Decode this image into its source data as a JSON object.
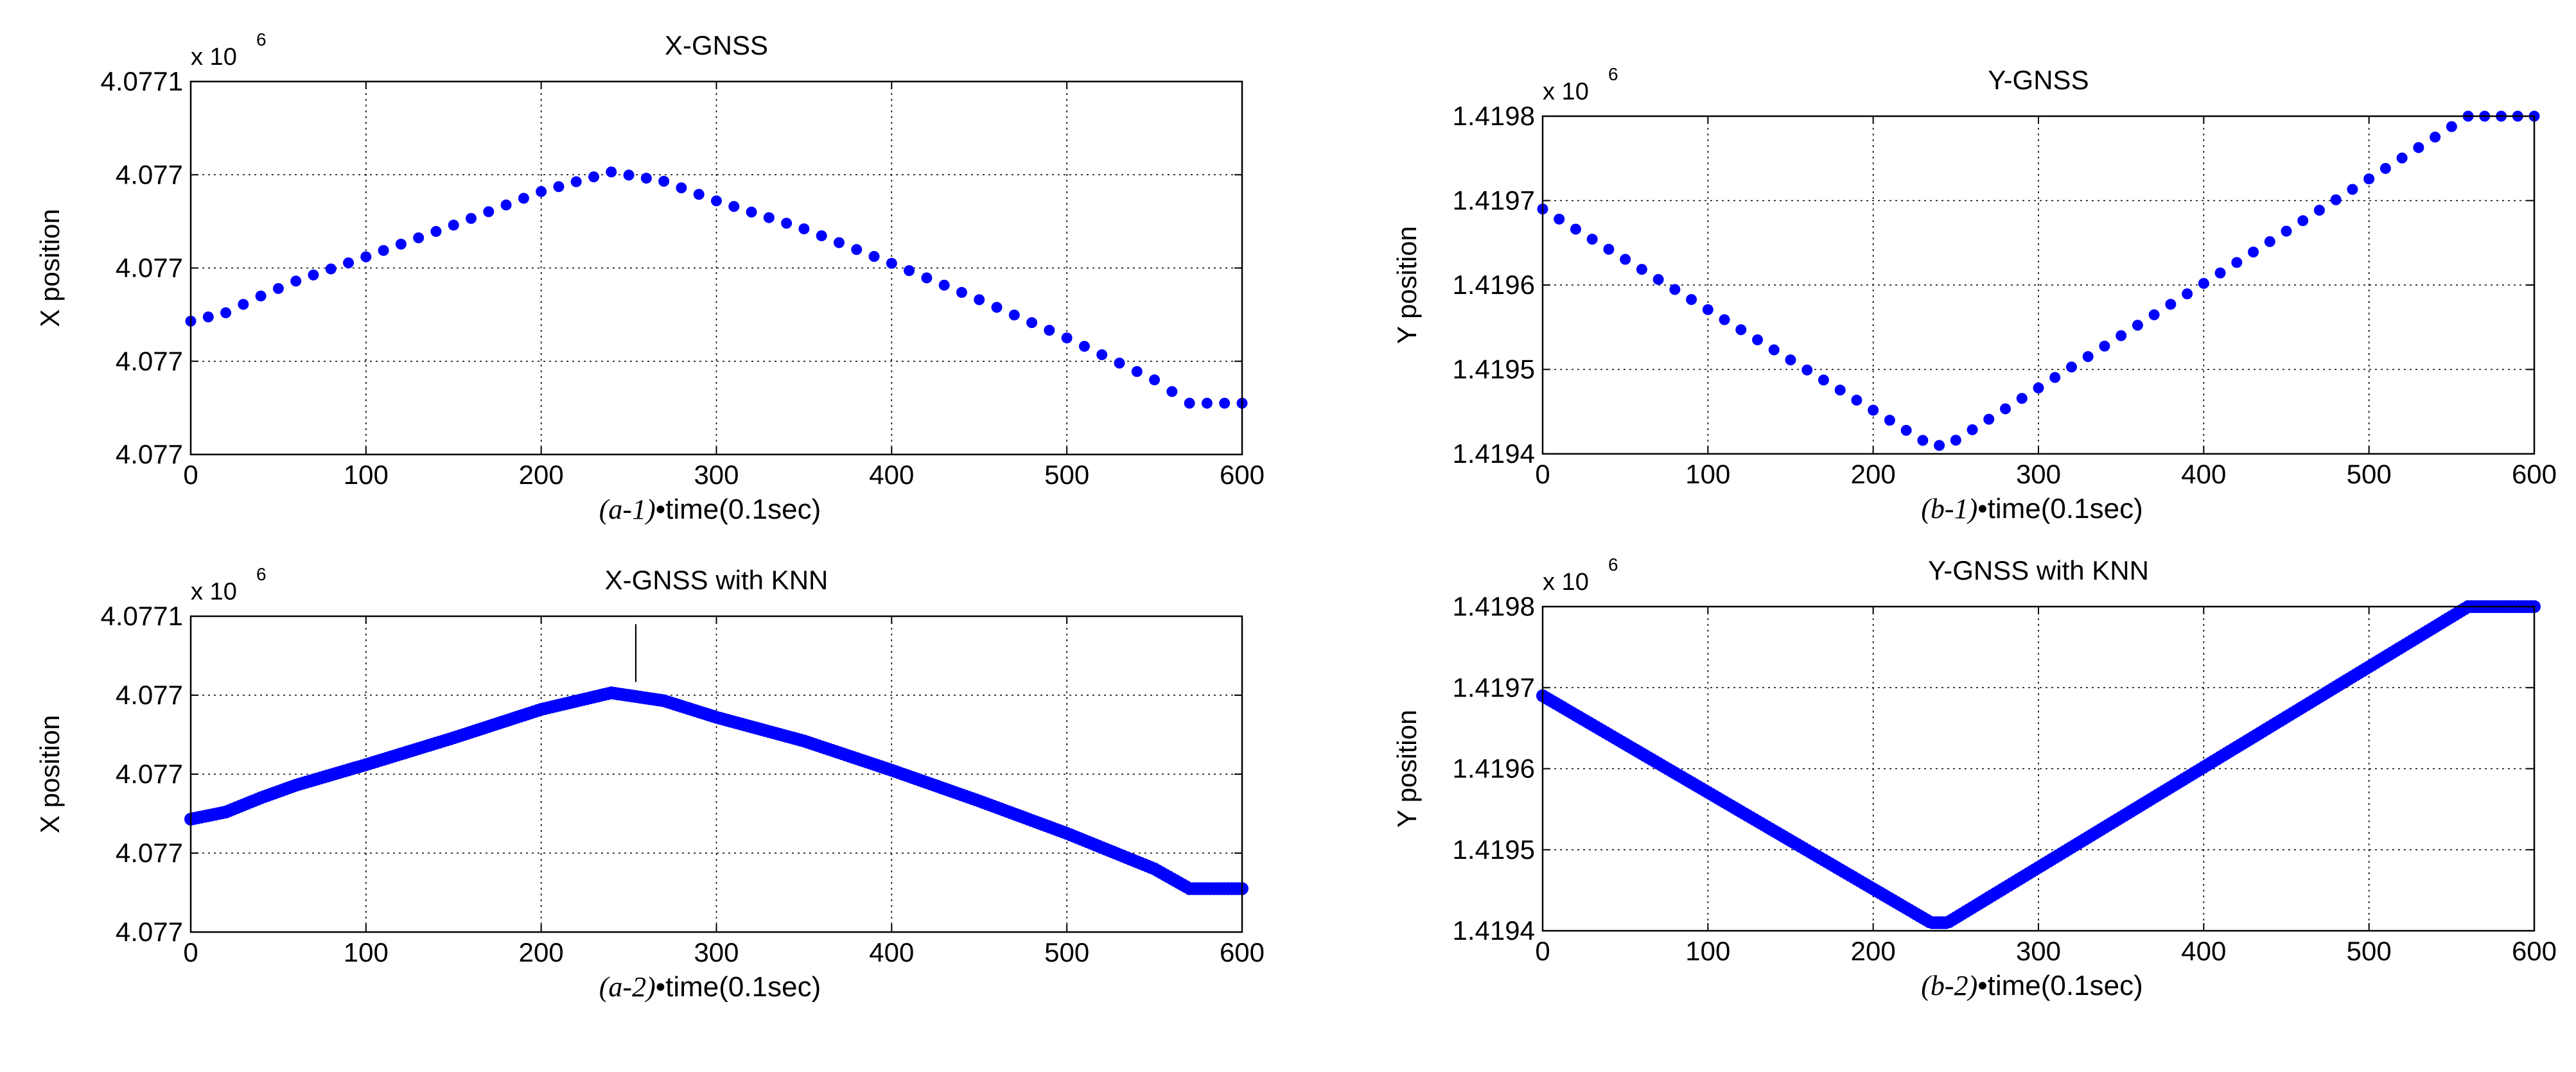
{
  "chart_data": [
    {
      "id": "a1",
      "type": "scatter",
      "title": "X-GNSS",
      "xlabel_prefix": "(a-1)",
      "xlabel": "•time(0.1sec)",
      "ylabel": "X position",
      "multiplier_base": "x 10",
      "multiplier_exp": "6",
      "xlim": [
        0,
        600
      ],
      "ylim": [
        0,
        4
      ],
      "xticks": [
        0,
        100,
        200,
        300,
        400,
        500,
        600
      ],
      "xtick_labels": [
        "0",
        "100",
        "200",
        "300",
        "400",
        "500",
        "600"
      ],
      "yticks": [
        0,
        1,
        2,
        3,
        4
      ],
      "ytick_labels": [
        "4.077",
        "4.077",
        "4.077",
        "4.077",
        "4.0771"
      ],
      "grid": true,
      "marker_color": "#0000ff",
      "series": [
        {
          "name": "X-GNSS",
          "style": "dots",
          "step": 10,
          "x": [
            0,
            20,
            40,
            60,
            100,
            150,
            200,
            240,
            270,
            300,
            350,
            400,
            450,
            500,
            550,
            570,
            600
          ],
          "y": [
            1.43,
            1.52,
            1.7,
            1.86,
            2.12,
            2.46,
            2.82,
            3.03,
            2.93,
            2.72,
            2.42,
            2.05,
            1.66,
            1.25,
            0.8,
            0.55,
            0.55
          ]
        }
      ]
    },
    {
      "id": "a2",
      "type": "scatter",
      "title": "X-GNSS with KNN",
      "xlabel_prefix": "(a-2)",
      "xlabel": "•time(0.1sec)",
      "ylabel": "X position",
      "multiplier_base": "x 10",
      "multiplier_exp": "6",
      "xlim": [
        0,
        600
      ],
      "ylim": [
        0,
        4
      ],
      "xticks": [
        0,
        100,
        200,
        300,
        400,
        500,
        600
      ],
      "xtick_labels": [
        "0",
        "100",
        "200",
        "300",
        "400",
        "500",
        "600"
      ],
      "yticks": [
        0,
        1,
        2,
        3,
        4
      ],
      "ytick_labels": [
        "4.077",
        "4.077",
        "4.077",
        "4.077",
        "4.0771"
      ],
      "grid": true,
      "marker_color": "#0000ff",
      "annotation_line": {
        "x": 254,
        "y_from": 3.02,
        "y_to": 3.9
      },
      "series": [
        {
          "name": "X-GNSS with KNN",
          "style": "dense",
          "step": 2,
          "x": [
            0,
            20,
            40,
            60,
            100,
            150,
            200,
            240,
            270,
            300,
            350,
            400,
            450,
            500,
            550,
            570,
            600
          ],
          "y": [
            1.43,
            1.52,
            1.7,
            1.86,
            2.12,
            2.46,
            2.82,
            3.03,
            2.93,
            2.72,
            2.42,
            2.05,
            1.66,
            1.25,
            0.8,
            0.55,
            0.55
          ]
        }
      ]
    },
    {
      "id": "b1",
      "type": "scatter",
      "title": "Y-GNSS",
      "xlabel_prefix": "(b-1)",
      "xlabel": "•time(0.1sec)",
      "ylabel": "Y position",
      "multiplier_base": "x 10",
      "multiplier_exp": "6",
      "xlim": [
        0,
        600
      ],
      "ylim": [
        1.4194,
        1.4198
      ],
      "xticks": [
        0,
        100,
        200,
        300,
        400,
        500,
        600
      ],
      "xtick_labels": [
        "0",
        "100",
        "200",
        "300",
        "400",
        "500",
        "600"
      ],
      "yticks": [
        1.4194,
        1.4195,
        1.4196,
        1.4197,
        1.4198
      ],
      "ytick_labels": [
        "1.4194",
        "1.4195",
        "1.4196",
        "1.4197",
        "1.4198"
      ],
      "grid": true,
      "marker_color": "#0000ff",
      "series": [
        {
          "name": "Y-GNSS",
          "style": "dots",
          "step": 10,
          "x": [
            0,
            235,
            245,
            560,
            600
          ],
          "y": [
            1.41969,
            1.41941,
            1.41941,
            1.4198,
            1.4198
          ]
        }
      ]
    },
    {
      "id": "b2",
      "type": "scatter",
      "title": "Y-GNSS with KNN",
      "xlabel_prefix": "(b-2)",
      "xlabel": "•time(0.1sec)",
      "ylabel": "Y position",
      "multiplier_base": "x 10",
      "multiplier_exp": "6",
      "xlim": [
        0,
        600
      ],
      "ylim": [
        1.4194,
        1.4198
      ],
      "xticks": [
        0,
        100,
        200,
        300,
        400,
        500,
        600
      ],
      "xtick_labels": [
        "0",
        "100",
        "200",
        "300",
        "400",
        "500",
        "600"
      ],
      "yticks": [
        1.4194,
        1.4195,
        1.4196,
        1.4197,
        1.4198
      ],
      "ytick_labels": [
        "1.4194",
        "1.4195",
        "1.4196",
        "1.4197",
        "1.4198"
      ],
      "grid": true,
      "marker_color": "#0000ff",
      "series": [
        {
          "name": "Y-GNSS with KNN",
          "style": "dense",
          "step": 2,
          "x": [
            0,
            235,
            245,
            560,
            600
          ],
          "y": [
            1.41969,
            1.41941,
            1.41941,
            1.4198,
            1.4198
          ]
        }
      ]
    }
  ]
}
